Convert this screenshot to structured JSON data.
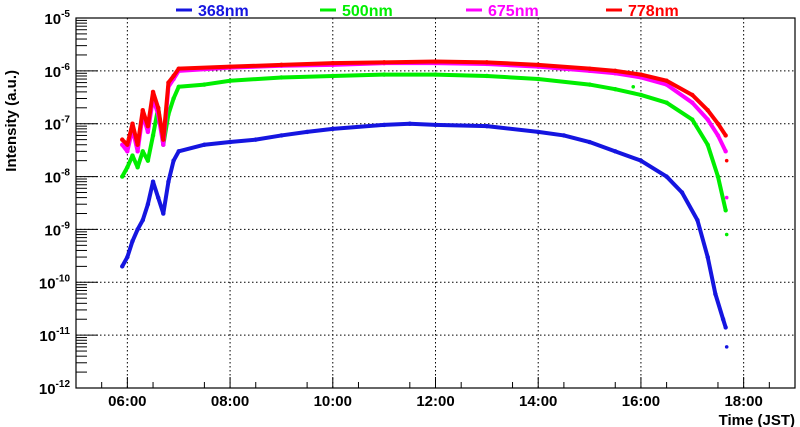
{
  "chart_data": {
    "type": "scatter",
    "title": "",
    "xlabel": "Time (JST)",
    "ylabel": "Intensity (a.u.)",
    "xlim_hours": [
      5.0,
      19.0
    ],
    "ylim": [
      1e-12,
      1e-05
    ],
    "yscale": "log",
    "grid": true,
    "legend_placement": "top",
    "x_ticks": [
      {
        "h": 6,
        "label": "06:00"
      },
      {
        "h": 8,
        "label": "08:00"
      },
      {
        "h": 10,
        "label": "10:00"
      },
      {
        "h": 12,
        "label": "12:00"
      },
      {
        "h": 14,
        "label": "14:00"
      },
      {
        "h": 16,
        "label": "16:00"
      },
      {
        "h": 18,
        "label": "18:00"
      }
    ],
    "y_ticks": [
      {
        "exp": -5,
        "base": "10",
        "sup": "-5"
      },
      {
        "exp": -6,
        "base": "10",
        "sup": "-6"
      },
      {
        "exp": -7,
        "base": "10",
        "sup": "-7"
      },
      {
        "exp": -8,
        "base": "10",
        "sup": "-8"
      },
      {
        "exp": -9,
        "base": "10",
        "sup": "-9"
      },
      {
        "exp": -10,
        "base": "10",
        "sup": "-10"
      },
      {
        "exp": -11,
        "base": "10",
        "sup": "-11"
      },
      {
        "exp": -12,
        "base": "10",
        "sup": "-12"
      }
    ],
    "series": [
      {
        "name": "368nm",
        "color": "#1515e0",
        "points": [
          [
            5.9,
            2e-10
          ],
          [
            6.0,
            3e-10
          ],
          [
            6.1,
            6e-10
          ],
          [
            6.2,
            1e-09
          ],
          [
            6.3,
            1.5e-09
          ],
          [
            6.4,
            3e-09
          ],
          [
            6.5,
            8e-09
          ],
          [
            6.6,
            4e-09
          ],
          [
            6.7,
            2e-09
          ],
          [
            6.8,
            8e-09
          ],
          [
            6.9,
            2e-08
          ],
          [
            7.0,
            3e-08
          ],
          [
            7.5,
            4e-08
          ],
          [
            8.0,
            4.5e-08
          ],
          [
            8.5,
            5e-08
          ],
          [
            9.0,
            6e-08
          ],
          [
            9.5,
            7e-08
          ],
          [
            10.0,
            8e-08
          ],
          [
            11.0,
            9.5e-08
          ],
          [
            11.5,
            1e-07
          ],
          [
            12.0,
            9.5e-08
          ],
          [
            13.0,
            9e-08
          ],
          [
            14.0,
            7e-08
          ],
          [
            14.5,
            6e-08
          ],
          [
            15.0,
            4.5e-08
          ],
          [
            15.5,
            3e-08
          ],
          [
            16.0,
            2e-08
          ],
          [
            16.5,
            1e-08
          ],
          [
            16.8,
            5e-09
          ],
          [
            17.1,
            1.5e-09
          ],
          [
            17.3,
            3e-10
          ],
          [
            17.45,
            6e-11
          ],
          [
            17.6,
            2e-11
          ],
          [
            17.65,
            1.4e-11
          ]
        ],
        "outliers": [
          [
            17.67,
            6e-12
          ]
        ]
      },
      {
        "name": "500nm",
        "color": "#00ee00",
        "points": [
          [
            5.9,
            1e-08
          ],
          [
            6.0,
            1.5e-08
          ],
          [
            6.1,
            2.5e-08
          ],
          [
            6.2,
            1.5e-08
          ],
          [
            6.3,
            3e-08
          ],
          [
            6.4,
            2e-08
          ],
          [
            6.5,
            6e-08
          ],
          [
            6.6,
            2e-07
          ],
          [
            6.7,
            4e-08
          ],
          [
            6.8,
            1.5e-07
          ],
          [
            6.9,
            3e-07
          ],
          [
            7.0,
            5e-07
          ],
          [
            7.5,
            5.5e-07
          ],
          [
            8.0,
            6.5e-07
          ],
          [
            9.0,
            7.5e-07
          ],
          [
            10.0,
            8e-07
          ],
          [
            11.0,
            8.5e-07
          ],
          [
            12.0,
            8.5e-07
          ],
          [
            13.0,
            8e-07
          ],
          [
            14.0,
            7e-07
          ],
          [
            15.0,
            5.5e-07
          ],
          [
            15.5,
            4.5e-07
          ],
          [
            16.0,
            3.5e-07
          ],
          [
            16.5,
            2.5e-07
          ],
          [
            17.0,
            1.2e-07
          ],
          [
            17.3,
            4e-08
          ],
          [
            17.5,
            1e-08
          ],
          [
            17.65,
            2.3e-09
          ]
        ],
        "outliers": [
          [
            15.85,
            5e-07
          ],
          [
            17.67,
            8e-10
          ]
        ]
      },
      {
        "name": "675nm",
        "color": "#ff00ff",
        "points": [
          [
            5.9,
            4e-08
          ],
          [
            6.0,
            3e-08
          ],
          [
            6.1,
            8e-08
          ],
          [
            6.2,
            3e-08
          ],
          [
            6.3,
            1.5e-07
          ],
          [
            6.4,
            7e-08
          ],
          [
            6.5,
            3e-07
          ],
          [
            6.6,
            1.5e-07
          ],
          [
            6.7,
            4e-08
          ],
          [
            6.8,
            5e-07
          ],
          [
            6.9,
            7e-07
          ],
          [
            7.0,
            1e-06
          ],
          [
            8.0,
            1.15e-06
          ],
          [
            9.0,
            1.25e-06
          ],
          [
            10.0,
            1.3e-06
          ],
          [
            11.0,
            1.4e-06
          ],
          [
            12.0,
            1.4e-06
          ],
          [
            13.0,
            1.35e-06
          ],
          [
            14.0,
            1.2e-06
          ],
          [
            15.0,
            1e-06
          ],
          [
            15.5,
            9e-07
          ],
          [
            16.0,
            7.5e-07
          ],
          [
            16.5,
            5.5e-07
          ],
          [
            17.0,
            2.5e-07
          ],
          [
            17.3,
            1.2e-07
          ],
          [
            17.5,
            6e-08
          ],
          [
            17.65,
            3e-08
          ]
        ],
        "outliers": [
          [
            17.67,
            4e-09
          ]
        ]
      },
      {
        "name": "778nm",
        "color": "#ff0000",
        "points": [
          [
            5.9,
            5e-08
          ],
          [
            6.0,
            4e-08
          ],
          [
            6.1,
            1e-07
          ],
          [
            6.2,
            4e-08
          ],
          [
            6.3,
            1.8e-07
          ],
          [
            6.4,
            9e-08
          ],
          [
            6.5,
            4e-07
          ],
          [
            6.6,
            2e-07
          ],
          [
            6.7,
            5e-08
          ],
          [
            6.8,
            6e-07
          ],
          [
            6.9,
            8e-07
          ],
          [
            7.0,
            1.1e-06
          ],
          [
            8.0,
            1.2e-06
          ],
          [
            9.0,
            1.3e-06
          ],
          [
            10.0,
            1.4e-06
          ],
          [
            11.0,
            1.45e-06
          ],
          [
            12.0,
            1.5e-06
          ],
          [
            13.0,
            1.45e-06
          ],
          [
            14.0,
            1.3e-06
          ],
          [
            15.0,
            1.1e-06
          ],
          [
            15.5,
            1e-06
          ],
          [
            16.0,
            8.5e-07
          ],
          [
            16.5,
            6.5e-07
          ],
          [
            17.0,
            3.5e-07
          ],
          [
            17.3,
            1.8e-07
          ],
          [
            17.5,
            1e-07
          ],
          [
            17.65,
            6e-08
          ]
        ],
        "outliers": [
          [
            17.67,
            2e-08
          ]
        ]
      }
    ]
  }
}
